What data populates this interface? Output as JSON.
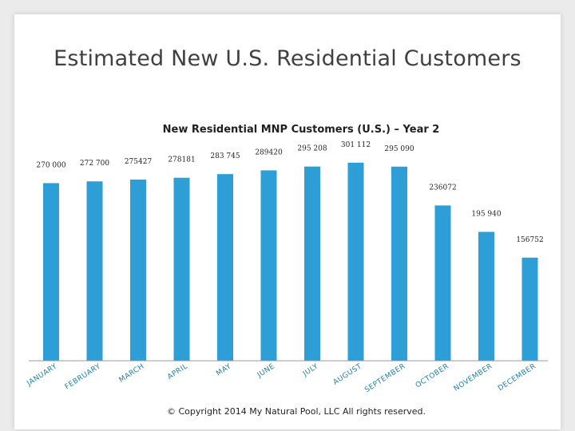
{
  "slide": {
    "title": "Estimated New U.S. Residential Customers",
    "copyright": "© Copyright 2014 My Natural Pool, LLC All rights reserved."
  },
  "colors": {
    "bar": "#2e9fd6",
    "category_label": "#1f7fa8",
    "axis": "#9a9a9a"
  },
  "chart_data": {
    "type": "bar",
    "title": "New Residential MNP Customers (U.S.) – Year 2",
    "categories": [
      "JANUARY",
      "FEBRUARY",
      "MARCH",
      "APRIL",
      "MAY",
      "JUNE",
      "JULY",
      "AUGUST",
      "SEPTEMBER",
      "OCTOBER",
      "NOVEMBER",
      "DECEMBER"
    ],
    "values": [
      270000,
      272700,
      275427,
      278181,
      283745,
      289420,
      295208,
      301112,
      295090,
      236072,
      195940,
      156752
    ],
    "value_labels": [
      "270 000",
      "272 700",
      "275427",
      "278181",
      "283 745",
      "289420",
      "295 208",
      "301 112",
      "295 090",
      "236072",
      "195 940",
      "156752"
    ],
    "xlabel": "",
    "ylabel": "",
    "ylim": [
      0,
      330000
    ],
    "grid": false,
    "legend": "none"
  }
}
